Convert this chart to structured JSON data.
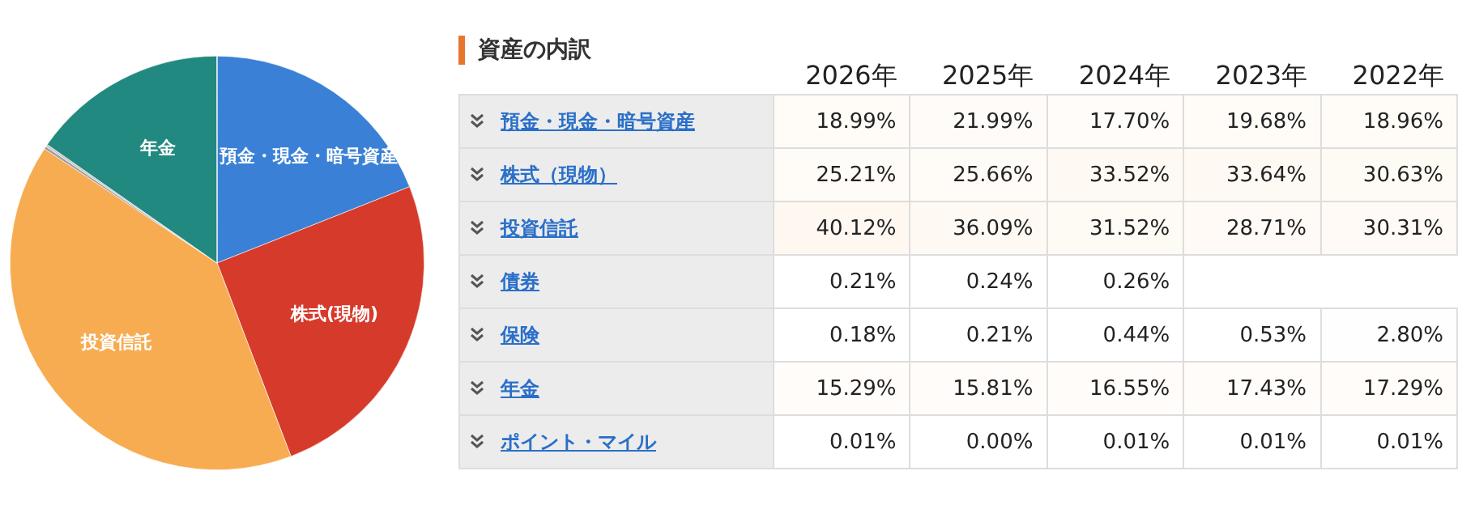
{
  "chart_data": [
    {
      "type": "pie",
      "categories": [
        "預金・現金・暗号資産",
        "株式(現物)",
        "投資信託",
        null,
        null,
        "年金",
        null
      ],
      "values": [
        18.99,
        25.21,
        40.12,
        0.21,
        0.18,
        15.29,
        0.01
      ],
      "colors": [
        "#3a80d6",
        "#d63a2a",
        "#f7ac52",
        "#9c9c9c",
        "#c8c8c8",
        "#21897f",
        "#e0e0e0"
      ]
    },
    {
      "type": "heatmap",
      "title": "資産の内訳",
      "categories": [
        "2026年",
        "2025年",
        "2024年",
        "2023年",
        "2022年"
      ],
      "y_categories": [
        "預金・現金・暗号資産",
        "株式（現物）",
        "投資信託",
        "債券",
        "保険",
        "年金",
        "ポイント・マイル"
      ],
      "cells": [
        [
          18.99,
          21.99,
          17.7,
          19.68,
          18.96
        ],
        [
          25.21,
          25.66,
          33.52,
          33.64,
          30.63
        ],
        [
          40.12,
          36.09,
          31.52,
          28.71,
          30.31
        ],
        [
          0.21,
          0.24,
          0.26,
          null,
          null
        ],
        [
          0.18,
          0.21,
          0.44,
          0.53,
          2.8
        ],
        [
          15.29,
          15.81,
          16.55,
          17.43,
          17.29
        ],
        [
          0.01,
          0.0,
          0.01,
          0.01,
          0.01
        ]
      ],
      "cell_labels": [
        [
          "18.99%",
          "21.99%",
          "17.70%",
          "19.68%",
          "18.96%"
        ],
        [
          "25.21%",
          "25.66%",
          "33.52%",
          "33.64%",
          "30.63%"
        ],
        [
          "40.12%",
          "36.09%",
          "31.52%",
          "28.71%",
          "30.31%"
        ],
        [
          "0.21%",
          "0.24%",
          "0.26%",
          null,
          null
        ],
        [
          "0.18%",
          "0.21%",
          "0.44%",
          "0.53%",
          "2.80%"
        ],
        [
          "15.29%",
          "15.81%",
          "16.55%",
          "17.43%",
          "17.29%"
        ],
        [
          "0.01%",
          "0.00%",
          "0.01%",
          "0.01%",
          "0.01%"
        ]
      ]
    }
  ]
}
